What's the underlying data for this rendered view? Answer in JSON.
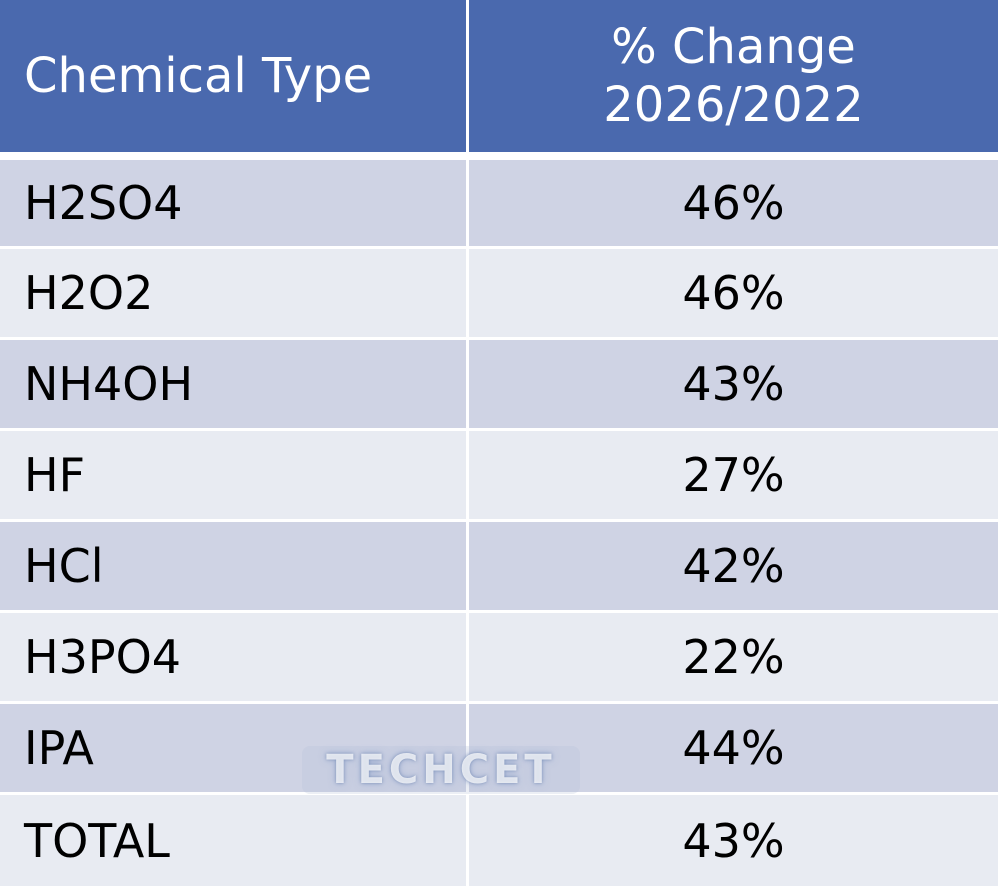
{
  "chart_data": {
    "type": "table",
    "columns": [
      "Chemical Type",
      "% Change 2026/2022"
    ],
    "header": {
      "col1": "Chemical Type",
      "col2_line1": "% Change",
      "col2_line2": "2026/2022"
    },
    "rows": [
      {
        "chemical": "H2SO4",
        "change": "46%"
      },
      {
        "chemical": "H2O2",
        "change": "46%"
      },
      {
        "chemical": "NH4OH",
        "change": "43%"
      },
      {
        "chemical": "HF",
        "change": "27%"
      },
      {
        "chemical": "HCl",
        "change": "42%"
      },
      {
        "chemical": "H3PO4",
        "change": "22%"
      },
      {
        "chemical": "IPA",
        "change": "44%"
      },
      {
        "chemical": "TOTAL",
        "change": "43%"
      }
    ]
  },
  "watermark": "TECHCET",
  "colors": {
    "header": "#4a69ae",
    "row_dark": "#cfd3e4",
    "row_light": "#e8ebf2"
  }
}
